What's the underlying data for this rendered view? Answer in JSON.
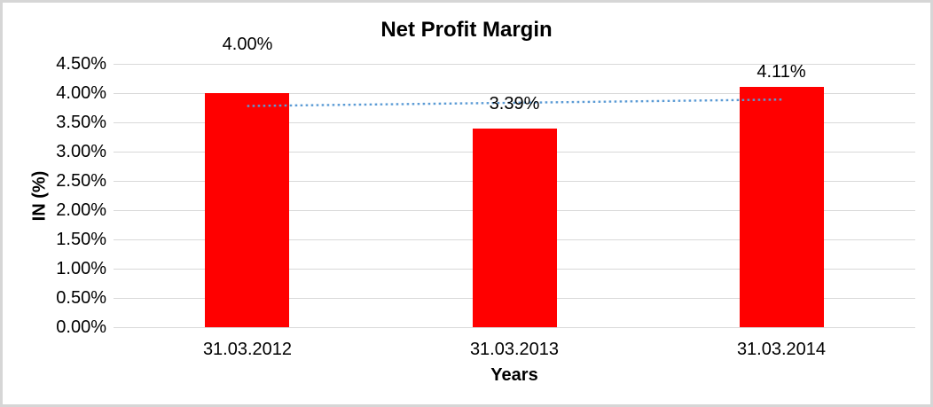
{
  "chart_data": {
    "type": "bar",
    "title": "Net Profit Margin",
    "xlabel": "Years",
    "ylabel": "IN (%)",
    "categories": [
      "31.03.2012",
      "31.03.2013",
      "31.03.2014"
    ],
    "series": [
      {
        "name": "Net Profit Margin",
        "values": [
          4.0,
          3.39,
          4.11
        ]
      }
    ],
    "data_labels": [
      "4.00%",
      "3.39%",
      "4.11%"
    ],
    "ylim": [
      0,
      4.5
    ],
    "ytick_step": 0.5,
    "ytick_labels": [
      "0.00%",
      "0.50%",
      "1.00%",
      "1.50%",
      "2.00%",
      "2.50%",
      "3.00%",
      "3.50%",
      "4.00%",
      "4.50%"
    ],
    "grid": true,
    "legend": false,
    "bar_color": "#FF0000",
    "gridline_color": "#D9D9D9",
    "text_color": "#000000",
    "trendline": {
      "type": "linear",
      "style": "dotted",
      "color": "#5B9BD5",
      "start_value": 3.78,
      "end_value": 3.89
    }
  }
}
